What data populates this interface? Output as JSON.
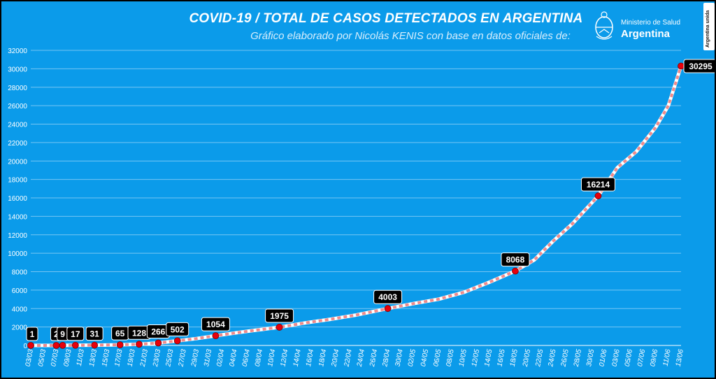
{
  "header": {
    "title": "COVID-19  /  TOTAL DE CASOS DETECTADOS EN ARGENTINA",
    "subtitle": "Gráfico elaborado por Nicolás KENIS con base en datos oficiales de:"
  },
  "ministry": {
    "line1": "Ministerio de Salud",
    "line2": "Argentina"
  },
  "badge": {
    "text": "Argentina unida"
  },
  "colors": {
    "background": "#0b9bea",
    "grid": "#cfe9fb",
    "line_main": "#ffffff",
    "line_dash": "#f08a8a",
    "marker": "#e8000b",
    "label_box": "#000000"
  },
  "chart_data": {
    "type": "line",
    "title": "COVID-19  /  TOTAL DE CASOS DETECTADOS EN ARGENTINA",
    "xlabel": "",
    "ylabel": "",
    "ylim": [
      0,
      32000
    ],
    "y_ticks": [
      0,
      2000,
      4000,
      6000,
      8000,
      10000,
      12000,
      14000,
      16000,
      18000,
      20000,
      22000,
      24000,
      26000,
      28000,
      30000,
      32000
    ],
    "y_tick_labels": [
      "0",
      "2000",
      "4000",
      "6000",
      "8000",
      "10000",
      "12000",
      "14000",
      "16000",
      "18000",
      "20000",
      "22000",
      "24000",
      "26000",
      "28000",
      "30000",
      "32000"
    ],
    "grid": true,
    "x_start": "2020-03-03",
    "x_end": "2020-06-13",
    "x_tick_labels": [
      "03/03",
      "05/03",
      "07/03",
      "09/03",
      "11/03",
      "13/03",
      "15/03",
      "17/03",
      "19/03",
      "21/03",
      "23/03",
      "25/03",
      "27/03",
      "29/03",
      "31/03",
      "02/04",
      "04/04",
      "06/04",
      "08/04",
      "10/04",
      "12/04",
      "14/04",
      "16/04",
      "18/04",
      "20/04",
      "22/04",
      "24/04",
      "26/04",
      "28/04",
      "30/04",
      "02/05",
      "04/05",
      "06/05",
      "08/05",
      "10/05",
      "12/05",
      "14/05",
      "16/05",
      "18/05",
      "20/05",
      "22/05",
      "24/05",
      "26/05",
      "28/05",
      "30/05",
      "01/06",
      "03/06",
      "05/06",
      "07/06",
      "09/06",
      "11/06",
      "13/06"
    ],
    "series": [
      {
        "points": [
          [
            "2020-03-03",
            1
          ],
          [
            "2020-03-07",
            2
          ],
          [
            "2020-03-08",
            9
          ],
          [
            "2020-03-10",
            17
          ],
          [
            "2020-03-13",
            31
          ],
          [
            "2020-03-17",
            65
          ],
          [
            "2020-03-20",
            128
          ],
          [
            "2020-03-23",
            266
          ],
          [
            "2020-03-26",
            502
          ],
          [
            "2020-03-29",
            745
          ],
          [
            "2020-04-01",
            1054
          ],
          [
            "2020-04-04",
            1353
          ],
          [
            "2020-04-07",
            1628
          ],
          [
            "2020-04-11",
            1975
          ],
          [
            "2020-04-15",
            2443
          ],
          [
            "2020-04-19",
            2839
          ],
          [
            "2020-04-23",
            3288
          ],
          [
            "2020-04-28",
            4003
          ],
          [
            "2020-05-02",
            4532
          ],
          [
            "2020-05-06",
            5020
          ],
          [
            "2020-05-10",
            5776
          ],
          [
            "2020-05-14",
            6879
          ],
          [
            "2020-05-18",
            8068
          ],
          [
            "2020-05-21",
            9283
          ],
          [
            "2020-05-24",
            11353
          ],
          [
            "2020-05-27",
            13228
          ],
          [
            "2020-05-31",
            16214
          ],
          [
            "2020-06-03",
            19268
          ],
          [
            "2020-06-06",
            21037
          ],
          [
            "2020-06-09",
            23620
          ],
          [
            "2020-06-11",
            25987
          ],
          [
            "2020-06-13",
            30295
          ]
        ]
      }
    ],
    "annotations": [
      {
        "x": "2020-03-03",
        "y": 1,
        "label": "1"
      },
      {
        "x": "2020-03-07",
        "y": 2,
        "label": "2"
      },
      {
        "x": "2020-03-08",
        "y": 9,
        "label": "9"
      },
      {
        "x": "2020-03-10",
        "y": 17,
        "label": "17"
      },
      {
        "x": "2020-03-13",
        "y": 31,
        "label": "31"
      },
      {
        "x": "2020-03-17",
        "y": 65,
        "label": "65"
      },
      {
        "x": "2020-03-20",
        "y": 128,
        "label": "128"
      },
      {
        "x": "2020-03-23",
        "y": 266,
        "label": "266"
      },
      {
        "x": "2020-03-26",
        "y": 502,
        "label": "502"
      },
      {
        "x": "2020-04-01",
        "y": 1054,
        "label": "1054"
      },
      {
        "x": "2020-04-11",
        "y": 1975,
        "label": "1975"
      },
      {
        "x": "2020-04-28",
        "y": 4003,
        "label": "4003"
      },
      {
        "x": "2020-05-18",
        "y": 8068,
        "label": "8068"
      },
      {
        "x": "2020-05-31",
        "y": 16214,
        "label": "16214"
      },
      {
        "x": "2020-06-13",
        "y": 30295,
        "label": "30295"
      }
    ]
  }
}
